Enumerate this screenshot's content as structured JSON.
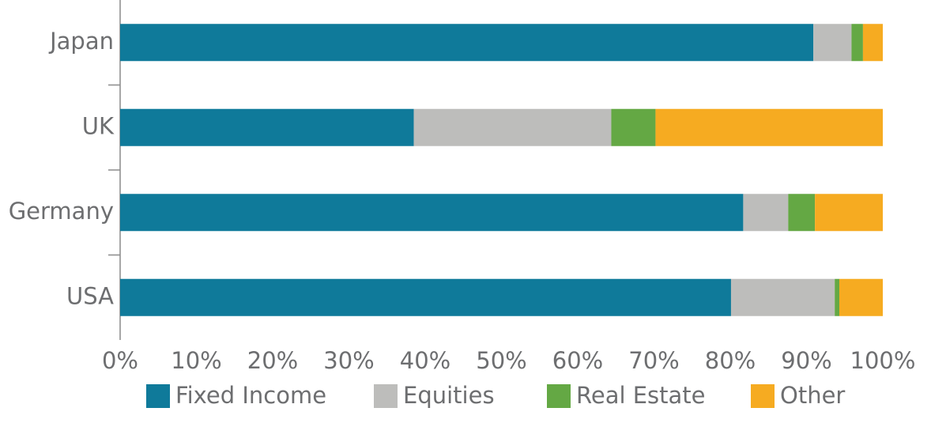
{
  "chart_data": {
    "type": "stacked-bar-horizontal",
    "categories": [
      "Japan",
      "UK",
      "Germany",
      "USA"
    ],
    "series": [
      {
        "name": "Fixed Income",
        "color": "#0f7a9a",
        "values": [
          90.9,
          38.5,
          81.7,
          80.1
        ]
      },
      {
        "name": "Equities",
        "color": "#bdbdbb",
        "values": [
          5.0,
          25.9,
          5.9,
          13.6
        ]
      },
      {
        "name": "Real Estate",
        "color": "#64a844",
        "values": [
          1.5,
          5.8,
          3.5,
          0.6
        ]
      },
      {
        "name": "Other",
        "color": "#f6ab21",
        "values": [
          2.6,
          29.8,
          8.9,
          5.7
        ]
      }
    ],
    "xlim": [
      0,
      100
    ],
    "xticks": [
      {
        "value": 0,
        "label": "0%"
      },
      {
        "value": 10,
        "label": "10%"
      },
      {
        "value": 20,
        "label": "20%"
      },
      {
        "value": 30,
        "label": "30%"
      },
      {
        "value": 40,
        "label": "40%"
      },
      {
        "value": 50,
        "label": "50%"
      },
      {
        "value": 60,
        "label": "60%"
      },
      {
        "value": 70,
        "label": "70%"
      },
      {
        "value": 80,
        "label": "80%"
      },
      {
        "value": 90,
        "label": "90%"
      },
      {
        "value": 100,
        "label": "100%"
      }
    ],
    "legend": "bottom"
  }
}
